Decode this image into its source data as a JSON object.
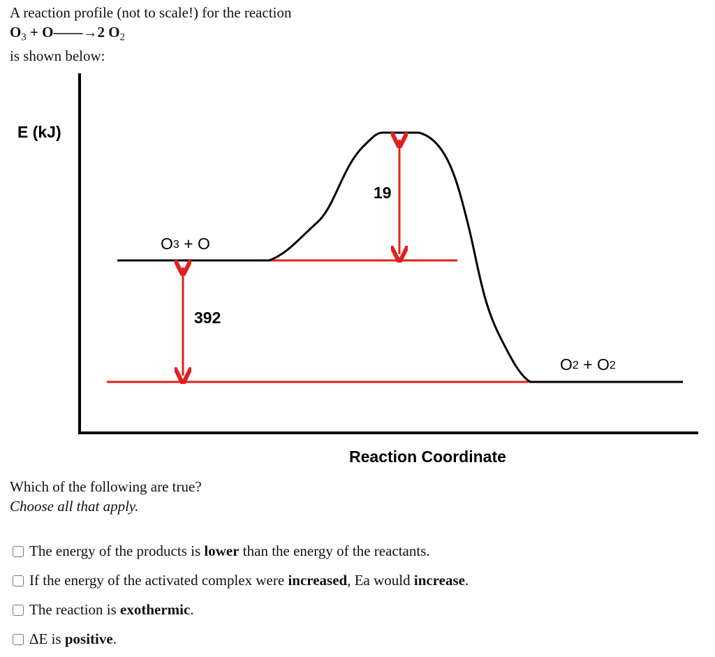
{
  "intro": {
    "line_1": "A reaction profile (not to scale!) for the reaction",
    "equation": [
      {
        "text": "O",
        "style": "bold"
      },
      {
        "text": "3",
        "style": "sub"
      },
      {
        "text": " + O——→2 O",
        "style": "bold"
      },
      {
        "text": "2",
        "style": "sub"
      }
    ],
    "line_3": "is shown below:"
  },
  "diagram": {
    "y_axis_label": "E (kJ)",
    "x_axis_label": "Reaction Coordinate",
    "reactants": [
      {
        "text": "O",
        "style": "normal"
      },
      {
        "text": "3",
        "style": "small"
      },
      {
        "text": " + O",
        "style": "normal"
      }
    ],
    "products": [
      {
        "text": "O",
        "style": "normal"
      },
      {
        "text": "2",
        "style": "small"
      },
      {
        "text": " + O",
        "style": "normal"
      },
      {
        "text": "2",
        "style": "small"
      }
    ],
    "delta_label": "392",
    "ea_label": "19"
  },
  "question": {
    "prompt": "Which of the following are true?",
    "instruction": "Choose all that apply.",
    "options": [
      [
        {
          "text": "The energy of the products is ",
          "style": "normal"
        },
        {
          "text": "lower",
          "style": "bold"
        },
        {
          "text": " than the energy of the reactants.",
          "style": "normal"
        }
      ],
      [
        {
          "text": "If the energy of the activated complex were ",
          "style": "normal"
        },
        {
          "text": "increased",
          "style": "bold"
        },
        {
          "text": ", Ea would ",
          "style": "normal"
        },
        {
          "text": "increase",
          "style": "bold"
        },
        {
          "text": ".",
          "style": "normal"
        }
      ],
      [
        {
          "text": "The reaction is ",
          "style": "normal"
        },
        {
          "text": "exothermic",
          "style": "bold"
        },
        {
          "text": ".",
          "style": "normal"
        }
      ],
      [
        {
          "text": "ΔE is ",
          "style": "normal"
        },
        {
          "text": "positive",
          "style": "bold"
        },
        {
          "text": ".",
          "style": "normal"
        }
      ]
    ]
  }
}
